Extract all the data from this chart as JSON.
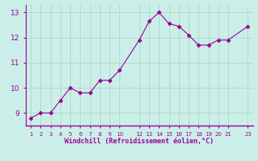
{
  "x": [
    1,
    2,
    3,
    4,
    5,
    6,
    7,
    8,
    9,
    10,
    12,
    13,
    14,
    15,
    16,
    17,
    18,
    19,
    20,
    21,
    23
  ],
  "y": [
    8.8,
    9.0,
    9.0,
    9.5,
    10.0,
    9.8,
    9.8,
    10.3,
    10.3,
    10.7,
    11.9,
    12.65,
    13.0,
    12.55,
    12.45,
    12.1,
    11.7,
    11.7,
    11.9,
    11.9,
    12.45
  ],
  "line_color": "#990099",
  "marker": "D",
  "marker_size": 2.5,
  "bg_color": "#cceee8",
  "grid_color": "#aaddcc",
  "xlabel": "Windchill (Refroidissement éolien,°C)",
  "xlabel_color": "#990099",
  "tick_color": "#990099",
  "yticks": [
    9,
    10,
    11,
    12,
    13
  ],
  "xtick_positions": [
    1,
    2,
    3,
    4,
    5,
    6,
    7,
    8,
    9,
    10,
    12,
    13,
    14,
    15,
    16,
    17,
    18,
    19,
    20,
    21,
    23
  ],
  "xtick_labels": [
    "1",
    "2",
    "3",
    "4",
    "5",
    "6",
    "7",
    "8",
    "9",
    "10",
    "12",
    "13",
    "14",
    "15",
    "16",
    "17",
    "18",
    "19",
    "20",
    "21",
    "23"
  ],
  "xlim": [
    0.5,
    23.5
  ],
  "ylim": [
    8.5,
    13.3
  ]
}
